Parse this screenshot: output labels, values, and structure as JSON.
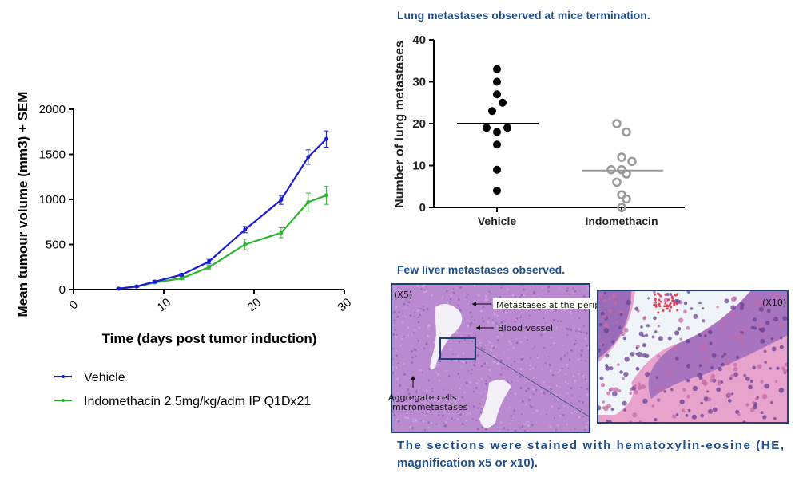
{
  "chart_data": [
    {
      "type": "line",
      "title": "",
      "xlabel": "Time (days post tumor induction)",
      "ylabel": "Mean tumour volume (mm3) + SEM",
      "xlim": [
        0,
        30
      ],
      "ylim": [
        0,
        2000
      ],
      "xticks": [
        "0",
        "10",
        "20",
        "30"
      ],
      "yticks": [
        "0",
        "500",
        "1000",
        "1500",
        "2000"
      ],
      "grid": false,
      "legend_placement": "bottom",
      "x": [
        5,
        7,
        9,
        12,
        15,
        19,
        23,
        26,
        28
      ],
      "series": [
        {
          "name": "Vehicle",
          "color": "#1a1ad6",
          "values": [
            10,
            35,
            88,
            165,
            310,
            665,
            995,
            1470,
            1670
          ],
          "sem": [
            5,
            8,
            12,
            15,
            25,
            35,
            50,
            80,
            90
          ]
        },
        {
          "name": "Indomethacin 2.5mg/kg/adm IP Q1Dx21",
          "color": "#2cb52c",
          "values": [
            10,
            32,
            78,
            125,
            248,
            500,
            630,
            970,
            1045
          ],
          "sem": [
            5,
            8,
            10,
            15,
            20,
            60,
            55,
            100,
            100
          ]
        }
      ]
    },
    {
      "type": "scatter",
      "title": "Lung metastases observed at mice termination.",
      "xlabel": "",
      "ylabel": "Number of lung metastases",
      "ylim": [
        0,
        40
      ],
      "yticks": [
        "0",
        "10",
        "20",
        "30",
        "40"
      ],
      "categories": [
        "Vehicle",
        "Indomethacin"
      ],
      "grid": false,
      "series": [
        {
          "category": "Vehicle",
          "color": "#000000",
          "filled": true,
          "values": [
            33,
            30,
            27,
            25,
            23,
            19,
            18,
            19,
            15,
            9,
            4
          ],
          "mean": 20
        },
        {
          "category": "Indomethacin",
          "color": "#9a9a9a",
          "filled": false,
          "values": [
            20,
            18,
            12,
            11,
            9,
            9,
            8,
            6,
            3,
            2,
            0
          ],
          "mean": 8.8
        }
      ]
    }
  ],
  "histology": {
    "title": "Few liver metastases observed.",
    "left_label": "(X5)",
    "right_label": "(X10)",
    "annotations": {
      "periphery": "Metastases at the periphery",
      "vessel": "Blood vessel",
      "aggregate_1": "Aggregate cells",
      "aggregate_2": "micrometastases"
    },
    "tissue_color": "#b98ad0",
    "zoom_color": "#e7a3cc"
  },
  "caption": {
    "line1": "The sections were stained with hematoxylin-eosine (HE,",
    "line2": "magnification x5 or x10)."
  }
}
